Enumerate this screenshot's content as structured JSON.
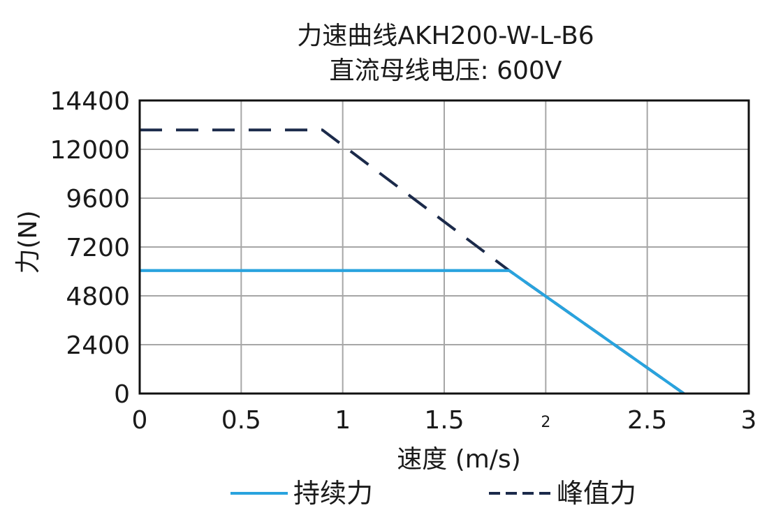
{
  "chart_data": {
    "type": "line",
    "title": "力速曲线AKH200-W-L-B6",
    "subtitle": "直流母线电压: 600V",
    "xlabel": "速度 (m/s)",
    "ylabel": "力(N)",
    "xlim": [
      0,
      3
    ],
    "ylim": [
      0,
      14400
    ],
    "x_ticks": [
      {
        "value": 0,
        "label": "0"
      },
      {
        "value": 0.5,
        "label": "0.5"
      },
      {
        "value": 1,
        "label": "1"
      },
      {
        "value": 1.5,
        "label": "1.5"
      },
      {
        "value": 2,
        "label": "2"
      },
      {
        "value": 2.5,
        "label": "2.5"
      },
      {
        "value": 3,
        "label": "3"
      }
    ],
    "y_ticks": [
      {
        "value": 0,
        "label": "0"
      },
      {
        "value": 2400,
        "label": "2400"
      },
      {
        "value": 4800,
        "label": "4800"
      },
      {
        "value": 7200,
        "label": "7200"
      },
      {
        "value": 9600,
        "label": "9600"
      },
      {
        "value": 12000,
        "label": "12000"
      },
      {
        "value": 14400,
        "label": "14400"
      }
    ],
    "grid": true,
    "legend_position": "bottom",
    "series": [
      {
        "name": "持续力",
        "style": "solid",
        "color": "#29a3de",
        "x": [
          0,
          1.82,
          2.68
        ],
        "y": [
          6040,
          6040,
          0
        ]
      },
      {
        "name": "峰值力",
        "style": "dashed",
        "color": "#1b2a4a",
        "x": [
          0,
          0.9,
          1.82,
          2.68
        ],
        "y": [
          12950,
          12950,
          6040,
          0
        ]
      }
    ]
  }
}
